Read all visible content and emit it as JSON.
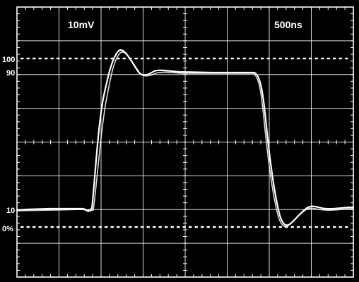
{
  "scope": {
    "volts_per_div_label": "10mV",
    "time_per_div_label": "500ns",
    "level_labels": {
      "l100": "100",
      "l90": "90",
      "l10": "10",
      "l0": "0%"
    },
    "colors": {
      "background": "#000000",
      "graticule": "#ffffff",
      "trace": "#ffffff"
    }
  }
}
